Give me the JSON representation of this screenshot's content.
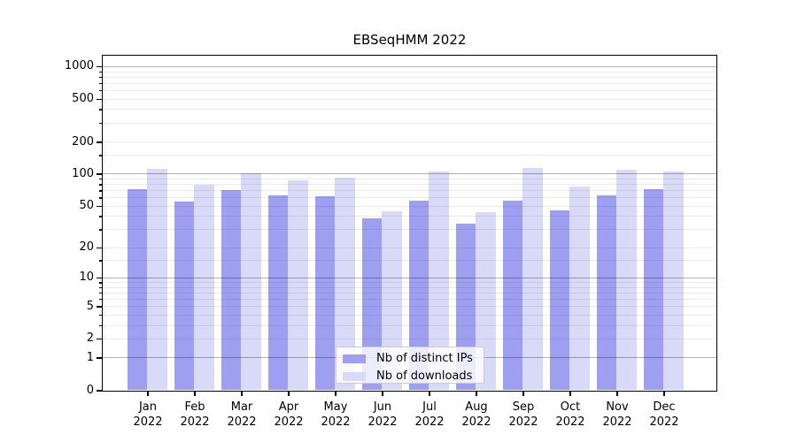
{
  "chart_data": {
    "type": "bar",
    "title": "EBSeqHMM 2022",
    "x_categories": [
      {
        "month": "Jan",
        "year": "2022"
      },
      {
        "month": "Feb",
        "year": "2022"
      },
      {
        "month": "Mar",
        "year": "2022"
      },
      {
        "month": "Apr",
        "year": "2022"
      },
      {
        "month": "May",
        "year": "2022"
      },
      {
        "month": "Jun",
        "year": "2022"
      },
      {
        "month": "Jul",
        "year": "2022"
      },
      {
        "month": "Aug",
        "year": "2022"
      },
      {
        "month": "Sep",
        "year": "2022"
      },
      {
        "month": "Oct",
        "year": "2022"
      },
      {
        "month": "Nov",
        "year": "2022"
      },
      {
        "month": "Dec",
        "year": "2022"
      }
    ],
    "series": [
      {
        "name": "Nb of distinct IPs",
        "color": "#9f9ff1",
        "values": [
          72,
          55,
          70,
          63,
          61,
          38,
          56,
          34,
          56,
          45,
          62,
          72
        ]
      },
      {
        "name": "Nb of downloads",
        "color": "#d9d9f8",
        "values": [
          112,
          78,
          100,
          87,
          91,
          44,
          104,
          43,
          114,
          76,
          108,
          105
        ]
      }
    ],
    "y_axis": {
      "scale": "log10(1+x)",
      "tick_values": [
        0,
        1,
        2,
        5,
        10,
        20,
        50,
        100,
        200,
        500,
        1000
      ],
      "tick_labels": [
        "0",
        "1",
        "2",
        "5",
        "10",
        "20",
        "50",
        "100",
        "200",
        "500",
        "1000"
      ],
      "axis_top_value": 1100
    },
    "grid": {
      "major_values": [
        1,
        10,
        100,
        1000
      ],
      "minor_values": [
        2,
        3,
        4,
        5,
        6,
        7,
        8,
        9,
        15,
        20,
        30,
        40,
        50,
        60,
        70,
        80,
        90,
        150,
        200,
        300,
        400,
        500,
        600,
        700,
        800,
        900
      ]
    },
    "legend_position": "bottom-center"
  },
  "colors": {
    "ips_bar": "#9f9ff1",
    "downloads_bar": "#d9d9f8",
    "grid_major": "rgba(0,0,0,0.30)",
    "grid_minor": "rgba(0,0,0,0.08)",
    "spine": "#000000",
    "background": "#ffffff"
  }
}
